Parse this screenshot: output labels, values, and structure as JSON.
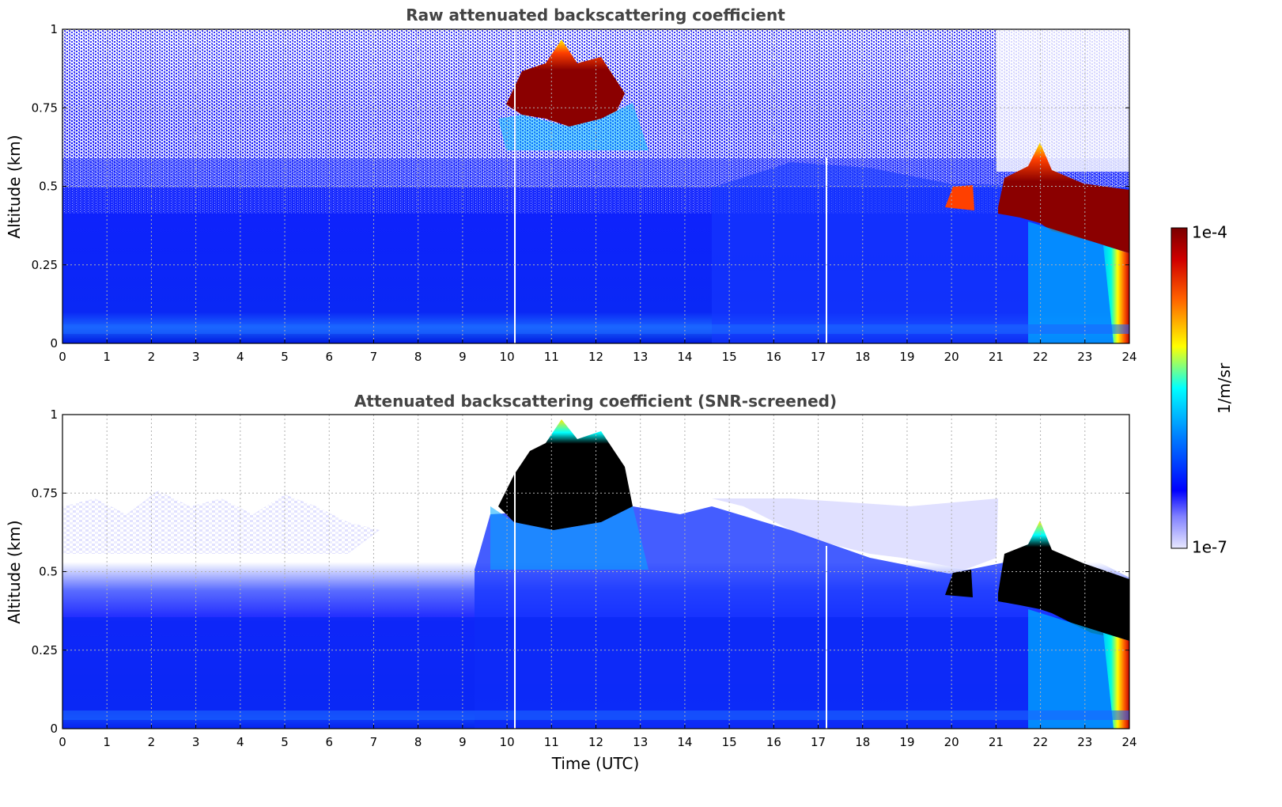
{
  "chart_data": [
    {
      "type": "heatmap",
      "title": "Raw attenuated backscattering coefficient",
      "xlabel": "",
      "ylabel": "Altitude (km)",
      "xlim": [
        0,
        24
      ],
      "ylim": [
        0,
        1
      ],
      "xticks": [
        "0",
        "1",
        "2",
        "3",
        "4",
        "5",
        "6",
        "7",
        "8",
        "9",
        "10",
        "11",
        "12",
        "13",
        "14",
        "15",
        "16",
        "17",
        "18",
        "19",
        "20",
        "21",
        "22",
        "23",
        "24"
      ],
      "yticks": [
        "0",
        "0.25",
        "0.5",
        "0.75",
        "1"
      ],
      "grid": true,
      "colorscale": "log jet",
      "features": [
        {
          "kind": "noise_top",
          "description_value": "high noise above boundary layer"
        },
        {
          "kind": "cloud",
          "x_range": [
            10.2,
            12.7
          ],
          "y_range": [
            0.72,
            0.95
          ]
        },
        {
          "kind": "cloud",
          "x_range": [
            19.8,
            20.4
          ],
          "y_range": [
            0.43,
            0.5
          ]
        },
        {
          "kind": "cloud",
          "x_range": [
            21.1,
            24
          ],
          "y_range": [
            0.3,
            0.64
          ]
        },
        {
          "kind": "precip",
          "x_range": [
            23.4,
            24
          ],
          "y_range": [
            0,
            0.3
          ]
        }
      ]
    },
    {
      "type": "heatmap",
      "title": "Attenuated backscattering coefficient (SNR-screened)",
      "xlabel": "Time (UTC)",
      "ylabel": "Altitude (km)",
      "xlim": [
        0,
        24
      ],
      "ylim": [
        0,
        1
      ],
      "xticks": [
        "0",
        "1",
        "2",
        "3",
        "4",
        "5",
        "6",
        "7",
        "8",
        "9",
        "10",
        "11",
        "12",
        "13",
        "14",
        "15",
        "16",
        "17",
        "18",
        "19",
        "20",
        "21",
        "22",
        "23",
        "24"
      ],
      "yticks": [
        "0",
        "0.25",
        "0.5",
        "0.75",
        "1"
      ],
      "grid": true,
      "colorscale": "log jet",
      "features": [
        {
          "kind": "cloud",
          "x_range": [
            10.2,
            12.7
          ],
          "y_range": [
            0.68,
            0.97
          ]
        },
        {
          "kind": "cloud",
          "x_range": [
            19.8,
            20.4
          ],
          "y_range": [
            0.43,
            0.5
          ]
        },
        {
          "kind": "cloud",
          "x_range": [
            21.1,
            24
          ],
          "y_range": [
            0.3,
            0.66
          ]
        },
        {
          "kind": "precip",
          "x_range": [
            23.4,
            24
          ],
          "y_range": [
            0,
            0.3
          ]
        }
      ]
    }
  ],
  "colorbar": {
    "label": "1/m/sr",
    "max_label": "1e-4",
    "min_label": "1e-7",
    "range": [
      1e-07,
      0.0001
    ],
    "scale": "log",
    "colors": [
      "#e8e8ff",
      "#0000ff",
      "#00aaff",
      "#00ffff",
      "#ffff00",
      "#ff6000",
      "#8b0000"
    ]
  }
}
